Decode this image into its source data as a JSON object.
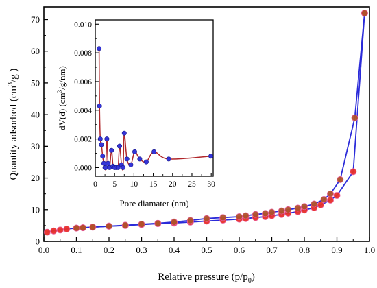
{
  "colors": {
    "adsorption_marker": "#e8302a",
    "desorption_marker": "#b0522b",
    "main_line": "#2b2bd9",
    "inset_marker": "#3535d8",
    "inset_line": "#b0262a"
  },
  "chart_data": [
    {
      "type": "line",
      "xlabel": "Relative pressure (p/p",
      "xlabel_sub": "0",
      "xlabel_end": ")",
      "ylabel": "Quantity adsorbed (cm",
      "ylabel_sup": "3",
      "ylabel_end": "/g )",
      "xlim": [
        0.0,
        1.0
      ],
      "ylim": [
        0,
        74
      ],
      "x_ticks": [
        "0.0",
        "0.1",
        "0.2",
        "0.3",
        "0.4",
        "0.5",
        "0.6",
        "0.7",
        "0.8",
        "0.9",
        "1.0"
      ],
      "y_ticks": [
        "0",
        "10",
        "20",
        "30",
        "40",
        "50",
        "60",
        "70"
      ],
      "series": [
        {
          "points": [
            [
              0.01,
              2.9
            ],
            [
              0.03,
              3.3
            ],
            [
              0.05,
              3.6
            ],
            [
              0.07,
              3.9
            ],
            [
              0.1,
              4.2
            ],
            [
              0.12,
              4.3
            ],
            [
              0.15,
              4.5
            ],
            [
              0.2,
              4.8
            ],
            [
              0.25,
              5.0
            ],
            [
              0.3,
              5.3
            ],
            [
              0.35,
              5.6
            ],
            [
              0.4,
              5.8
            ],
            [
              0.45,
              6.1
            ],
            [
              0.5,
              6.4
            ],
            [
              0.55,
              6.7
            ],
            [
              0.6,
              7.0
            ],
            [
              0.62,
              7.2
            ],
            [
              0.65,
              7.5
            ],
            [
              0.68,
              7.8
            ],
            [
              0.7,
              8.1
            ],
            [
              0.73,
              8.5
            ],
            [
              0.75,
              8.9
            ],
            [
              0.78,
              9.4
            ],
            [
              0.8,
              9.9
            ],
            [
              0.83,
              10.6
            ],
            [
              0.85,
              11.5
            ],
            [
              0.88,
              13.0
            ],
            [
              0.9,
              14.5
            ],
            [
              0.95,
              22.0
            ],
            [
              0.985,
              72.0
            ]
          ]
        },
        {
          "points": [
            [
              0.985,
              72.0
            ],
            [
              0.955,
              39.0
            ],
            [
              0.91,
              19.5
            ],
            [
              0.88,
              15.0
            ],
            [
              0.86,
              13.2
            ],
            [
              0.83,
              11.8
            ],
            [
              0.8,
              11.0
            ],
            [
              0.78,
              10.5
            ],
            [
              0.75,
              10.0
            ],
            [
              0.73,
              9.6
            ],
            [
              0.7,
              9.2
            ],
            [
              0.68,
              8.8
            ],
            [
              0.65,
              8.5
            ],
            [
              0.62,
              8.1
            ],
            [
              0.6,
              7.8
            ],
            [
              0.55,
              7.5
            ],
            [
              0.5,
              7.2
            ],
            [
              0.45,
              6.6
            ],
            [
              0.4,
              6.1
            ],
            [
              0.35,
              5.7
            ],
            [
              0.3,
              5.4
            ],
            [
              0.25,
              5.1
            ],
            [
              0.2,
              4.8
            ],
            [
              0.15,
              4.5
            ],
            [
              0.12,
              4.3
            ],
            [
              0.1,
              4.2
            ]
          ]
        }
      ]
    },
    {
      "type": "line",
      "xlabel": "Pore diamater (nm)",
      "ylabel": "dV(d) (cm",
      "ylabel_sup": "3",
      "ylabel_end": "/g/nm)",
      "xlim": [
        0,
        30.5
      ],
      "ylim": [
        -0.0006,
        0.0103
      ],
      "x_ticks": [
        "0",
        "5",
        "10",
        "15",
        "20",
        "25",
        "30"
      ],
      "y_ticks": [
        "0.000",
        "0.002",
        "0.004",
        "0.006",
        "0.008",
        "0.010"
      ],
      "series": [
        {
          "points": [
            [
              1.0,
              0.0083
            ],
            [
              1.1,
              0.0043
            ],
            [
              1.3,
              0.002
            ],
            [
              1.6,
              0.0016
            ],
            [
              1.9,
              0.0008
            ],
            [
              2.2,
              0.0003
            ],
            [
              2.5,
              0.0
            ],
            [
              2.7,
              0.0
            ],
            [
              3.0,
              0.002
            ],
            [
              3.3,
              0.0003
            ],
            [
              3.7,
              0.0
            ],
            [
              4.2,
              0.0012
            ],
            [
              4.6,
              0.0001
            ],
            [
              5.0,
              0.0
            ],
            [
              5.4,
              0.0
            ],
            [
              5.9,
              0.0
            ],
            [
              6.3,
              0.0015
            ],
            [
              6.8,
              0.0002
            ],
            [
              7.2,
              0.0
            ],
            [
              7.5,
              0.0024
            ],
            [
              8.2,
              0.0006
            ],
            [
              9.2,
              0.0002
            ],
            [
              10.2,
              0.0011
            ],
            [
              11.5,
              0.0006
            ],
            [
              13.2,
              0.0004
            ],
            [
              15.2,
              0.0011
            ],
            [
              19.0,
              0.0006
            ],
            [
              29.9,
              0.0008
            ]
          ]
        }
      ]
    }
  ]
}
